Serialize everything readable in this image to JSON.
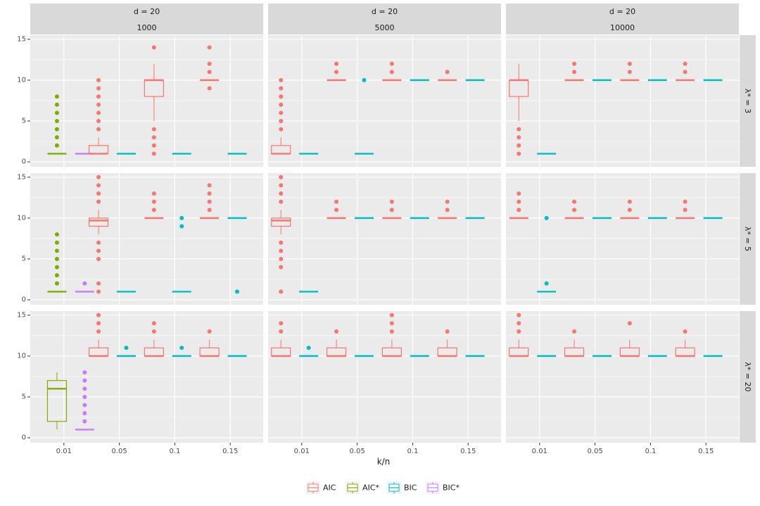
{
  "chart_data": {
    "type": "boxplot",
    "xlabel": "k/n",
    "ylabel": "",
    "categories": [
      "0.01",
      "0.05",
      "0.1",
      "0.15"
    ],
    "ylim": [
      -0.6,
      15.5
    ],
    "yticks": [
      0,
      5,
      10,
      15
    ],
    "column_facets": [
      {
        "top": "d = 20",
        "bottom": "1000"
      },
      {
        "top": "d = 20",
        "bottom": "5000"
      },
      {
        "top": "d = 20",
        "bottom": "10000"
      }
    ],
    "row_facets": [
      "λ* = 3",
      "λ* = 5",
      "λ* = 20"
    ],
    "series": [
      {
        "name": "AIC",
        "color": "#F8766D",
        "offset": -0.375
      },
      {
        "name": "AIC*",
        "color": "#7CAE00",
        "offset": -0.125
      },
      {
        "name": "BIC",
        "color": "#00BFC4",
        "offset": 0.125
      },
      {
        "name": "BIC*",
        "color": "#C77CFF",
        "offset": 0.375
      }
    ],
    "legend": {
      "position": "bottom",
      "labels": [
        "AIC",
        "AIC*",
        "BIC",
        "BIC*"
      ]
    },
    "boxes": [
      {
        "row": 0,
        "col": 0,
        "cat": 0,
        "series": "AIC*",
        "q1": 1,
        "med": 1,
        "q3": 1,
        "lo": 1,
        "hi": 1,
        "out": [
          2,
          3,
          4,
          5,
          6,
          7,
          8
        ]
      },
      {
        "row": 0,
        "col": 0,
        "cat": 0,
        "series": "BIC*",
        "q1": 1,
        "med": 1,
        "q3": 1,
        "lo": 1,
        "hi": 1,
        "out": []
      },
      {
        "row": 0,
        "col": 0,
        "cat": 1,
        "series": "AIC",
        "q1": 1,
        "med": 1,
        "q3": 2,
        "lo": 1,
        "hi": 3,
        "out": [
          4,
          5,
          6,
          7,
          8,
          9,
          10
        ]
      },
      {
        "row": 0,
        "col": 0,
        "cat": 1,
        "series": "BIC",
        "q1": 1,
        "med": 1,
        "q3": 1,
        "lo": 1,
        "hi": 1,
        "out": []
      },
      {
        "row": 0,
        "col": 0,
        "cat": 2,
        "series": "AIC",
        "q1": 8,
        "med": 10,
        "q3": 10,
        "lo": 5,
        "hi": 12,
        "out": [
          1,
          2,
          3,
          4,
          14
        ]
      },
      {
        "row": 0,
        "col": 0,
        "cat": 2,
        "series": "BIC",
        "q1": 1,
        "med": 1,
        "q3": 1,
        "lo": 1,
        "hi": 1,
        "out": []
      },
      {
        "row": 0,
        "col": 0,
        "cat": 3,
        "series": "AIC",
        "q1": 10,
        "med": 10,
        "q3": 10,
        "lo": 10,
        "hi": 10,
        "out": [
          9,
          11,
          12,
          14
        ]
      },
      {
        "row": 0,
        "col": 0,
        "cat": 3,
        "series": "BIC",
        "q1": 1,
        "med": 1,
        "q3": 1,
        "lo": 1,
        "hi": 1,
        "out": []
      },
      {
        "row": 0,
        "col": 1,
        "cat": 0,
        "series": "AIC",
        "q1": 1,
        "med": 1,
        "q3": 2,
        "lo": 1,
        "hi": 3,
        "out": [
          4,
          5,
          6,
          7,
          8,
          9,
          10
        ]
      },
      {
        "row": 0,
        "col": 1,
        "cat": 0,
        "series": "BIC",
        "q1": 1,
        "med": 1,
        "q3": 1,
        "lo": 1,
        "hi": 1,
        "out": []
      },
      {
        "row": 0,
        "col": 1,
        "cat": 1,
        "series": "AIC",
        "q1": 10,
        "med": 10,
        "q3": 10,
        "lo": 10,
        "hi": 10,
        "out": [
          11,
          12
        ]
      },
      {
        "row": 0,
        "col": 1,
        "cat": 1,
        "series": "BIC",
        "q1": 1,
        "med": 1,
        "q3": 1,
        "lo": 1,
        "hi": 1,
        "out": [
          10
        ]
      },
      {
        "row": 0,
        "col": 1,
        "cat": 2,
        "series": "AIC",
        "q1": 10,
        "med": 10,
        "q3": 10,
        "lo": 10,
        "hi": 10,
        "out": [
          11,
          12
        ]
      },
      {
        "row": 0,
        "col": 1,
        "cat": 2,
        "series": "BIC",
        "q1": 10,
        "med": 10,
        "q3": 10,
        "lo": 10,
        "hi": 10,
        "out": []
      },
      {
        "row": 0,
        "col": 1,
        "cat": 3,
        "series": "AIC",
        "q1": 10,
        "med": 10,
        "q3": 10,
        "lo": 10,
        "hi": 10,
        "out": [
          11
        ]
      },
      {
        "row": 0,
        "col": 1,
        "cat": 3,
        "series": "BIC",
        "q1": 10,
        "med": 10,
        "q3": 10,
        "lo": 10,
        "hi": 10,
        "out": []
      },
      {
        "row": 0,
        "col": 2,
        "cat": 0,
        "series": "AIC",
        "q1": 8,
        "med": 10,
        "q3": 10,
        "lo": 5,
        "hi": 12,
        "out": [
          1,
          2,
          3,
          4
        ]
      },
      {
        "row": 0,
        "col": 2,
        "cat": 0,
        "series": "BIC",
        "q1": 1,
        "med": 1,
        "q3": 1,
        "lo": 1,
        "hi": 1,
        "out": []
      },
      {
        "row": 0,
        "col": 2,
        "cat": 1,
        "series": "AIC",
        "q1": 10,
        "med": 10,
        "q3": 10,
        "lo": 10,
        "hi": 10,
        "out": [
          11,
          12
        ]
      },
      {
        "row": 0,
        "col": 2,
        "cat": 1,
        "series": "BIC",
        "q1": 10,
        "med": 10,
        "q3": 10,
        "lo": 10,
        "hi": 10,
        "out": []
      },
      {
        "row": 0,
        "col": 2,
        "cat": 2,
        "series": "AIC",
        "q1": 10,
        "med": 10,
        "q3": 10,
        "lo": 10,
        "hi": 10,
        "out": [
          11,
          12
        ]
      },
      {
        "row": 0,
        "col": 2,
        "cat": 2,
        "series": "BIC",
        "q1": 10,
        "med": 10,
        "q3": 10,
        "lo": 10,
        "hi": 10,
        "out": []
      },
      {
        "row": 0,
        "col": 2,
        "cat": 3,
        "series": "AIC",
        "q1": 10,
        "med": 10,
        "q3": 10,
        "lo": 10,
        "hi": 10,
        "out": [
          11,
          12
        ]
      },
      {
        "row": 0,
        "col": 2,
        "cat": 3,
        "series": "BIC",
        "q1": 10,
        "med": 10,
        "q3": 10,
        "lo": 10,
        "hi": 10,
        "out": []
      },
      {
        "row": 1,
        "col": 0,
        "cat": 0,
        "series": "AIC*",
        "q1": 1,
        "med": 1,
        "q3": 1,
        "lo": 1,
        "hi": 1,
        "out": [
          2,
          3,
          4,
          5,
          6,
          7,
          8
        ]
      },
      {
        "row": 1,
        "col": 0,
        "cat": 0,
        "series": "BIC*",
        "q1": 1,
        "med": 1,
        "q3": 1,
        "lo": 1,
        "hi": 1,
        "out": [
          2
        ]
      },
      {
        "row": 1,
        "col": 0,
        "cat": 1,
        "series": "AIC",
        "q1": 9,
        "med": 9.7,
        "q3": 10,
        "lo": 8,
        "hi": 11,
        "out": [
          1,
          2,
          5,
          6,
          7,
          12,
          13,
          14,
          15
        ]
      },
      {
        "row": 1,
        "col": 0,
        "cat": 1,
        "series": "BIC",
        "q1": 1,
        "med": 1,
        "q3": 1,
        "lo": 1,
        "hi": 1,
        "out": []
      },
      {
        "row": 1,
        "col": 0,
        "cat": 2,
        "series": "AIC",
        "q1": 10,
        "med": 10,
        "q3": 10,
        "lo": 10,
        "hi": 10,
        "out": [
          11,
          12,
          13
        ]
      },
      {
        "row": 1,
        "col": 0,
        "cat": 2,
        "series": "BIC",
        "q1": 1,
        "med": 1,
        "q3": 1,
        "lo": 1,
        "hi": 1,
        "out": [
          9,
          10
        ]
      },
      {
        "row": 1,
        "col": 0,
        "cat": 3,
        "series": "AIC",
        "q1": 10,
        "med": 10,
        "q3": 10,
        "lo": 10,
        "hi": 10,
        "out": [
          11,
          12,
          13,
          14
        ]
      },
      {
        "row": 1,
        "col": 0,
        "cat": 3,
        "series": "BIC",
        "q1": 10,
        "med": 10,
        "q3": 10,
        "lo": 10,
        "hi": 10,
        "out": [
          1
        ]
      },
      {
        "row": 1,
        "col": 1,
        "cat": 0,
        "series": "AIC",
        "q1": 9,
        "med": 9.7,
        "q3": 10,
        "lo": 8,
        "hi": 11,
        "out": [
          1,
          4,
          5,
          6,
          7,
          12,
          13,
          14,
          15
        ]
      },
      {
        "row": 1,
        "col": 1,
        "cat": 0,
        "series": "BIC",
        "q1": 1,
        "med": 1,
        "q3": 1,
        "lo": 1,
        "hi": 1,
        "out": []
      },
      {
        "row": 1,
        "col": 1,
        "cat": 1,
        "series": "AIC",
        "q1": 10,
        "med": 10,
        "q3": 10,
        "lo": 10,
        "hi": 10,
        "out": [
          11,
          12
        ]
      },
      {
        "row": 1,
        "col": 1,
        "cat": 1,
        "series": "BIC",
        "q1": 10,
        "med": 10,
        "q3": 10,
        "lo": 10,
        "hi": 10,
        "out": []
      },
      {
        "row": 1,
        "col": 1,
        "cat": 2,
        "series": "AIC",
        "q1": 10,
        "med": 10,
        "q3": 10,
        "lo": 10,
        "hi": 10,
        "out": [
          11,
          12
        ]
      },
      {
        "row": 1,
        "col": 1,
        "cat": 2,
        "series": "BIC",
        "q1": 10,
        "med": 10,
        "q3": 10,
        "lo": 10,
        "hi": 10,
        "out": []
      },
      {
        "row": 1,
        "col": 1,
        "cat": 3,
        "series": "AIC",
        "q1": 10,
        "med": 10,
        "q3": 10,
        "lo": 10,
        "hi": 10,
        "out": [
          11,
          12
        ]
      },
      {
        "row": 1,
        "col": 1,
        "cat": 3,
        "series": "BIC",
        "q1": 10,
        "med": 10,
        "q3": 10,
        "lo": 10,
        "hi": 10,
        "out": []
      },
      {
        "row": 1,
        "col": 2,
        "cat": 0,
        "series": "AIC",
        "q1": 10,
        "med": 10,
        "q3": 10,
        "lo": 10,
        "hi": 10,
        "out": [
          11,
          12,
          13
        ]
      },
      {
        "row": 1,
        "col": 2,
        "cat": 0,
        "series": "BIC",
        "q1": 1,
        "med": 1,
        "q3": 1,
        "lo": 1,
        "hi": 1,
        "out": [
          2,
          10
        ]
      },
      {
        "row": 1,
        "col": 2,
        "cat": 1,
        "series": "AIC",
        "q1": 10,
        "med": 10,
        "q3": 10,
        "lo": 10,
        "hi": 10,
        "out": [
          11,
          12
        ]
      },
      {
        "row": 1,
        "col": 2,
        "cat": 1,
        "series": "BIC",
        "q1": 10,
        "med": 10,
        "q3": 10,
        "lo": 10,
        "hi": 10,
        "out": []
      },
      {
        "row": 1,
        "col": 2,
        "cat": 2,
        "series": "AIC",
        "q1": 10,
        "med": 10,
        "q3": 10,
        "lo": 10,
        "hi": 10,
        "out": [
          11,
          12
        ]
      },
      {
        "row": 1,
        "col": 2,
        "cat": 2,
        "series": "BIC",
        "q1": 10,
        "med": 10,
        "q3": 10,
        "lo": 10,
        "hi": 10,
        "out": []
      },
      {
        "row": 1,
        "col": 2,
        "cat": 3,
        "series": "AIC",
        "q1": 10,
        "med": 10,
        "q3": 10,
        "lo": 10,
        "hi": 10,
        "out": [
          11,
          12
        ]
      },
      {
        "row": 1,
        "col": 2,
        "cat": 3,
        "series": "BIC",
        "q1": 10,
        "med": 10,
        "q3": 10,
        "lo": 10,
        "hi": 10,
        "out": []
      },
      {
        "row": 2,
        "col": 0,
        "cat": 0,
        "series": "AIC*",
        "q1": 2,
        "med": 6,
        "q3": 7,
        "lo": 1,
        "hi": 8,
        "out": []
      },
      {
        "row": 2,
        "col": 0,
        "cat": 0,
        "series": "BIC*",
        "q1": 1,
        "med": 1,
        "q3": 1,
        "lo": 1,
        "hi": 1,
        "out": [
          2,
          3,
          4,
          5,
          6,
          7,
          8
        ]
      },
      {
        "row": 2,
        "col": 0,
        "cat": 1,
        "series": "AIC",
        "q1": 10,
        "med": 10,
        "q3": 11,
        "lo": 10,
        "hi": 12,
        "out": [
          13,
          14,
          15
        ]
      },
      {
        "row": 2,
        "col": 0,
        "cat": 1,
        "series": "BIC",
        "q1": 10,
        "med": 10,
        "q3": 10,
        "lo": 10,
        "hi": 10,
        "out": [
          11
        ]
      },
      {
        "row": 2,
        "col": 0,
        "cat": 2,
        "series": "AIC",
        "q1": 10,
        "med": 10,
        "q3": 11,
        "lo": 10,
        "hi": 12,
        "out": [
          13,
          14
        ]
      },
      {
        "row": 2,
        "col": 0,
        "cat": 2,
        "series": "BIC",
        "q1": 10,
        "med": 10,
        "q3": 10,
        "lo": 10,
        "hi": 10,
        "out": [
          11
        ]
      },
      {
        "row": 2,
        "col": 0,
        "cat": 3,
        "series": "AIC",
        "q1": 10,
        "med": 10,
        "q3": 11,
        "lo": 10,
        "hi": 12,
        "out": [
          13
        ]
      },
      {
        "row": 2,
        "col": 0,
        "cat": 3,
        "series": "BIC",
        "q1": 10,
        "med": 10,
        "q3": 10,
        "lo": 10,
        "hi": 10,
        "out": []
      },
      {
        "row": 2,
        "col": 1,
        "cat": 0,
        "series": "AIC",
        "q1": 10,
        "med": 10,
        "q3": 11,
        "lo": 10,
        "hi": 12,
        "out": [
          13,
          14
        ]
      },
      {
        "row": 2,
        "col": 1,
        "cat": 0,
        "series": "BIC",
        "q1": 10,
        "med": 10,
        "q3": 10,
        "lo": 10,
        "hi": 10,
        "out": [
          11
        ]
      },
      {
        "row": 2,
        "col": 1,
        "cat": 1,
        "series": "AIC",
        "q1": 10,
        "med": 10,
        "q3": 11,
        "lo": 10,
        "hi": 12,
        "out": [
          13
        ]
      },
      {
        "row": 2,
        "col": 1,
        "cat": 1,
        "series": "BIC",
        "q1": 10,
        "med": 10,
        "q3": 10,
        "lo": 10,
        "hi": 10,
        "out": []
      },
      {
        "row": 2,
        "col": 1,
        "cat": 2,
        "series": "AIC",
        "q1": 10,
        "med": 10,
        "q3": 11,
        "lo": 10,
        "hi": 12,
        "out": [
          13,
          14,
          15
        ]
      },
      {
        "row": 2,
        "col": 1,
        "cat": 2,
        "series": "BIC",
        "q1": 10,
        "med": 10,
        "q3": 10,
        "lo": 10,
        "hi": 10,
        "out": []
      },
      {
        "row": 2,
        "col": 1,
        "cat": 3,
        "series": "AIC",
        "q1": 10,
        "med": 10,
        "q3": 11,
        "lo": 10,
        "hi": 12,
        "out": [
          13
        ]
      },
      {
        "row": 2,
        "col": 1,
        "cat": 3,
        "series": "BIC",
        "q1": 10,
        "med": 10,
        "q3": 10,
        "lo": 10,
        "hi": 10,
        "out": []
      },
      {
        "row": 2,
        "col": 2,
        "cat": 0,
        "series": "AIC",
        "q1": 10,
        "med": 10,
        "q3": 11,
        "lo": 10,
        "hi": 12,
        "out": [
          13,
          14,
          15
        ]
      },
      {
        "row": 2,
        "col": 2,
        "cat": 0,
        "series": "BIC",
        "q1": 10,
        "med": 10,
        "q3": 10,
        "lo": 10,
        "hi": 10,
        "out": []
      },
      {
        "row": 2,
        "col": 2,
        "cat": 1,
        "series": "AIC",
        "q1": 10,
        "med": 10,
        "q3": 11,
        "lo": 10,
        "hi": 12,
        "out": [
          13
        ]
      },
      {
        "row": 2,
        "col": 2,
        "cat": 1,
        "series": "BIC",
        "q1": 10,
        "med": 10,
        "q3": 10,
        "lo": 10,
        "hi": 10,
        "out": []
      },
      {
        "row": 2,
        "col": 2,
        "cat": 2,
        "series": "AIC",
        "q1": 10,
        "med": 10,
        "q3": 11,
        "lo": 10,
        "hi": 12,
        "out": [
          14
        ]
      },
      {
        "row": 2,
        "col": 2,
        "cat": 2,
        "series": "BIC",
        "q1": 10,
        "med": 10,
        "q3": 10,
        "lo": 10,
        "hi": 10,
        "out": []
      },
      {
        "row": 2,
        "col": 2,
        "cat": 3,
        "series": "AIC",
        "q1": 10,
        "med": 10,
        "q3": 11,
        "lo": 10,
        "hi": 12,
        "out": [
          13
        ]
      },
      {
        "row": 2,
        "col": 2,
        "cat": 3,
        "series": "BIC",
        "q1": 10,
        "med": 10,
        "q3": 10,
        "lo": 10,
        "hi": 10,
        "out": []
      }
    ]
  }
}
